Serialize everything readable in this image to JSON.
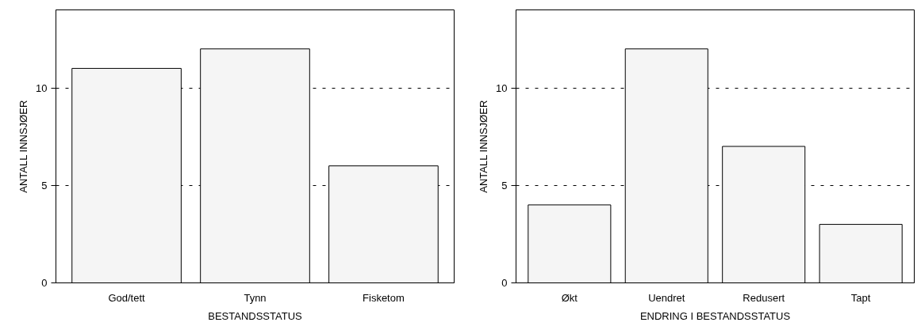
{
  "chart_data": [
    {
      "type": "bar",
      "categories": [
        "God/tett",
        "Tynn",
        "Fisketom"
      ],
      "values": [
        11,
        12,
        6
      ],
      "color": "#f5f5f5",
      "ylim": [
        0,
        14
      ],
      "yticks": [
        0,
        5,
        10
      ],
      "grid": "y",
      "xlabel": "BESTANDSSTATUS",
      "ylabel": "ANTALL INNSJØER"
    },
    {
      "type": "bar",
      "categories": [
        "Økt",
        "Uendret",
        "Redusert",
        "Tapt"
      ],
      "values": [
        4,
        12,
        7,
        3
      ],
      "color": "#f5f5f5",
      "ylim": [
        0,
        14
      ],
      "yticks": [
        0,
        5,
        10
      ],
      "grid": "y",
      "xlabel": "ENDRING I BESTANDSSTATUS",
      "ylabel": "ANTALL INNSJØER"
    }
  ]
}
